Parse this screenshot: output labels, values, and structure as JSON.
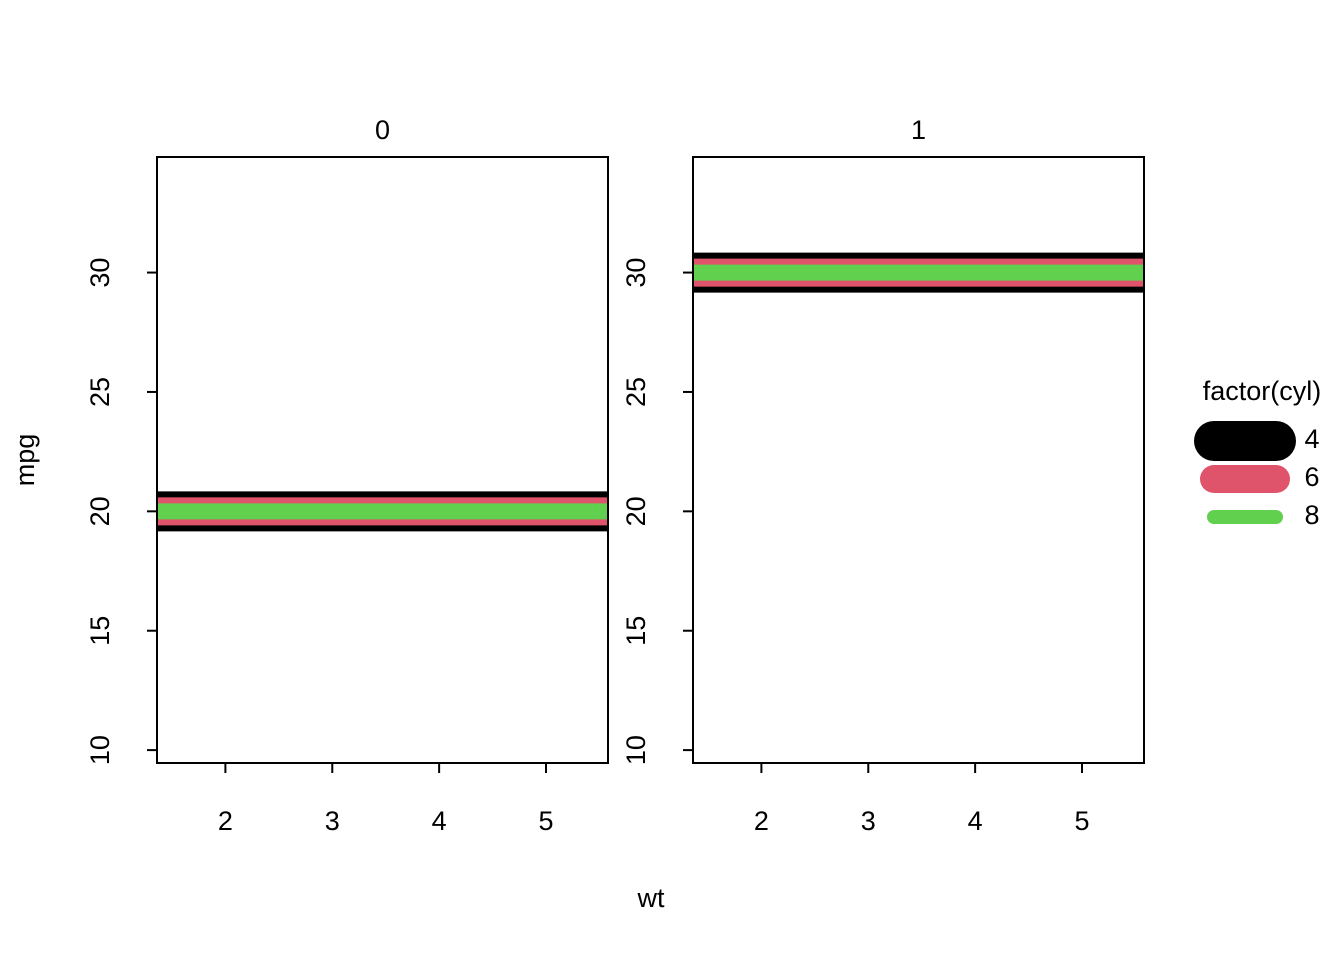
{
  "chart_data": {
    "type": "hline",
    "panels": [
      "0",
      "1"
    ],
    "xlabel": "wt",
    "ylabel": "mpg",
    "legend_title": "factor(cyl)",
    "xlim": [
      1.36,
      5.58
    ],
    "ylim": [
      9.46,
      34.84
    ],
    "xticks": [
      2,
      3,
      4,
      5
    ],
    "yticks": [
      10,
      15,
      20,
      25,
      30
    ],
    "series": [
      {
        "name": "4",
        "color": "#000000",
        "values": [
          20,
          30
        ]
      },
      {
        "name": "6",
        "color": "#df536b",
        "values": [
          20,
          30
        ]
      },
      {
        "name": "8",
        "color": "#61d04f",
        "values": [
          20,
          30
        ]
      }
    ]
  }
}
